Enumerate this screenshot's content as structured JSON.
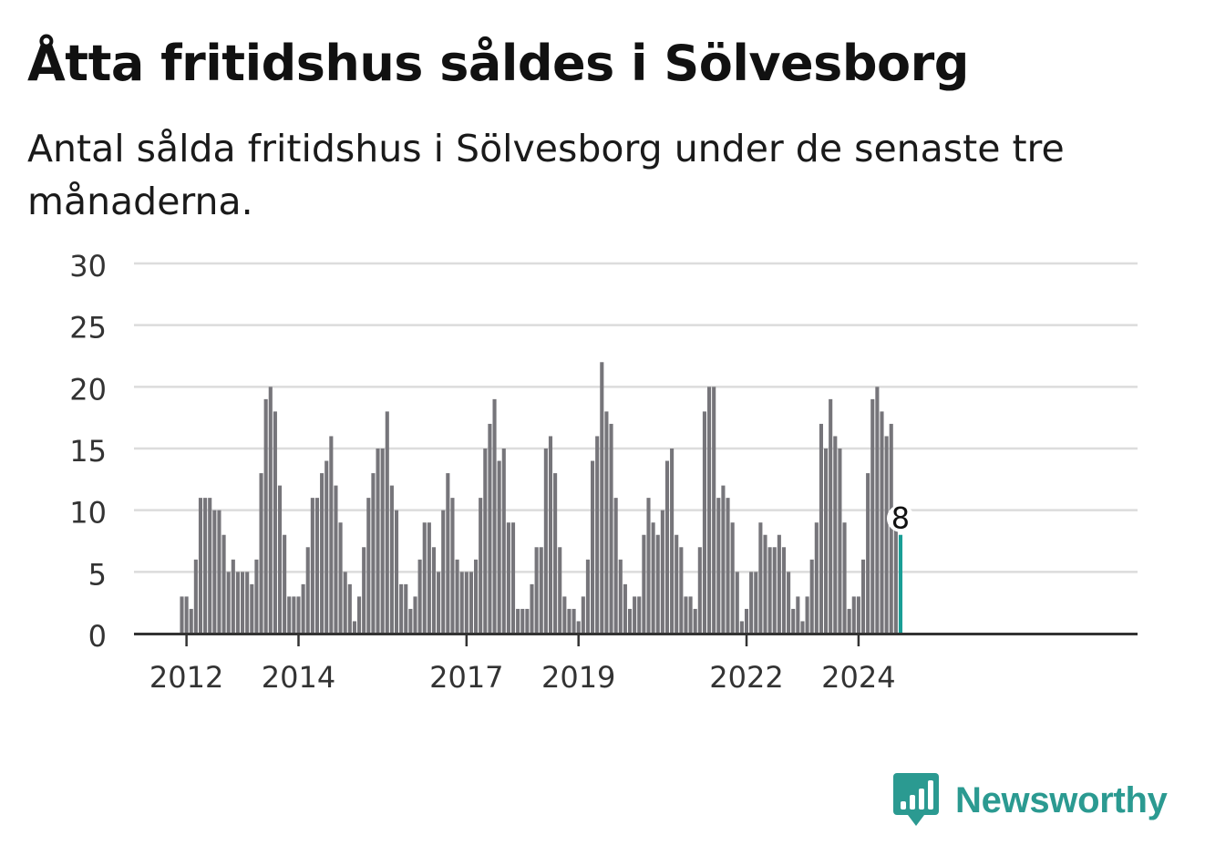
{
  "header": {
    "title": "Åtta fritidshus såldes i Sölvesborg",
    "subtitle": "Antal sålda fritidshus i Sölvesborg under de senaste tre månaderna."
  },
  "brand": {
    "name": "Newsworthy",
    "color": "#2b9a91",
    "icon": "bar-chart-speech-bubble-icon"
  },
  "chart_data": {
    "type": "bar",
    "x_start": "2011-12",
    "x_tick_labels": [
      "2012",
      "2014",
      "2017",
      "2019",
      "2022",
      "2024"
    ],
    "ylim": [
      0,
      30
    ],
    "y_ticks": [
      0,
      5,
      10,
      15,
      20,
      25,
      30
    ],
    "grid": true,
    "bar_color": "#76757a",
    "highlight_color": "#1a9e96",
    "highlight_label": "8",
    "values": [
      3,
      3,
      2,
      6,
      11,
      11,
      11,
      10,
      10,
      8,
      5,
      6,
      5,
      5,
      5,
      4,
      6,
      13,
      19,
      20,
      18,
      12,
      8,
      3,
      3,
      3,
      4,
      7,
      11,
      11,
      13,
      14,
      16,
      12,
      9,
      5,
      4,
      1,
      3,
      7,
      11,
      13,
      15,
      15,
      18,
      12,
      10,
      4,
      4,
      2,
      3,
      6,
      9,
      9,
      7,
      5,
      10,
      13,
      11,
      6,
      5,
      5,
      5,
      6,
      11,
      15,
      17,
      19,
      14,
      15,
      9,
      9,
      2,
      2,
      2,
      4,
      7,
      7,
      15,
      16,
      13,
      7,
      3,
      2,
      2,
      1,
      3,
      6,
      14,
      16,
      22,
      18,
      17,
      11,
      6,
      4,
      2,
      3,
      3,
      8,
      11,
      9,
      8,
      10,
      14,
      15,
      8,
      7,
      3,
      3,
      2,
      7,
      18,
      20,
      20,
      11,
      12,
      11,
      9,
      5,
      1,
      2,
      5,
      5,
      9,
      8,
      7,
      7,
      8,
      7,
      5,
      2,
      3,
      1,
      3,
      6,
      9,
      17,
      15,
      19,
      16,
      15,
      9,
      2,
      3,
      3,
      6,
      13,
      19,
      20,
      18,
      16,
      17,
      10,
      8
    ]
  }
}
